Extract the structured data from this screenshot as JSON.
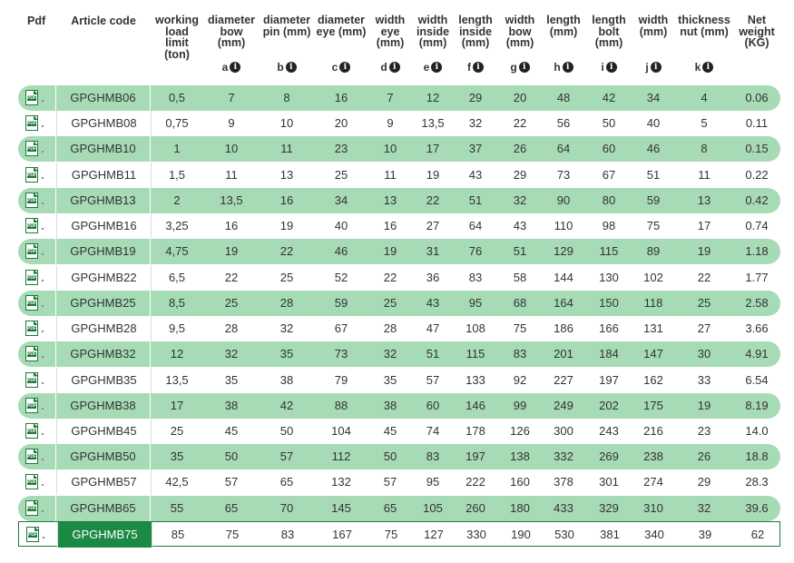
{
  "header": {
    "pdf": "Pdf",
    "article": "Article code",
    "columns": [
      {
        "lines": [
          "working",
          "load",
          "limit",
          "(ton)"
        ],
        "key": ""
      },
      {
        "lines": [
          "diameter",
          "bow",
          "(mm)"
        ],
        "key": "a"
      },
      {
        "lines": [
          "diameter",
          "pin (mm)"
        ],
        "key": "b"
      },
      {
        "lines": [
          "diameter",
          "eye (mm)"
        ],
        "key": "c"
      },
      {
        "lines": [
          "width",
          "eye",
          "(mm)"
        ],
        "key": "d"
      },
      {
        "lines": [
          "width",
          "inside",
          "(mm)"
        ],
        "key": "e"
      },
      {
        "lines": [
          "length",
          "inside",
          "(mm)"
        ],
        "key": "f"
      },
      {
        "lines": [
          "width",
          "bow",
          "(mm)"
        ],
        "key": "g"
      },
      {
        "lines": [
          "length",
          "(mm)"
        ],
        "key": "h"
      },
      {
        "lines": [
          "length",
          "bolt",
          "(mm)"
        ],
        "key": "i"
      },
      {
        "lines": [
          "width",
          "(mm)"
        ],
        "key": "j"
      },
      {
        "lines": [
          "thickness",
          "nut (mm)"
        ],
        "key": "k"
      },
      {
        "lines": [
          "Net",
          "weight",
          "(KG)"
        ],
        "key": ""
      }
    ]
  },
  "icons": {
    "pdf": "pdf-file-icon",
    "info": "info-icon"
  },
  "pdf_icon_text": "PDF",
  "info_glyph": "i",
  "accent": "#1b8a44",
  "stripe": "#a6dbb6",
  "rows": [
    {
      "code": "GPGHMB06",
      "values": [
        "0,5",
        "7",
        "8",
        "16",
        "7",
        "12",
        "29",
        "20",
        "48",
        "42",
        "34",
        "4",
        "0.06"
      ]
    },
    {
      "code": "GPGHMB08",
      "values": [
        "0,75",
        "9",
        "10",
        "20",
        "9",
        "13,5",
        "32",
        "22",
        "56",
        "50",
        "40",
        "5",
        "0.11"
      ]
    },
    {
      "code": "GPGHMB10",
      "values": [
        "1",
        "10",
        "11",
        "23",
        "10",
        "17",
        "37",
        "26",
        "64",
        "60",
        "46",
        "8",
        "0.15"
      ]
    },
    {
      "code": "GPGHMB11",
      "values": [
        "1,5",
        "11",
        "13",
        "25",
        "11",
        "19",
        "43",
        "29",
        "73",
        "67",
        "51",
        "11",
        "0.22"
      ]
    },
    {
      "code": "GPGHMB13",
      "values": [
        "2",
        "13,5",
        "16",
        "34",
        "13",
        "22",
        "51",
        "32",
        "90",
        "80",
        "59",
        "13",
        "0.42"
      ]
    },
    {
      "code": "GPGHMB16",
      "values": [
        "3,25",
        "16",
        "19",
        "40",
        "16",
        "27",
        "64",
        "43",
        "110",
        "98",
        "75",
        "17",
        "0.74"
      ]
    },
    {
      "code": "GPGHMB19",
      "values": [
        "4,75",
        "19",
        "22",
        "46",
        "19",
        "31",
        "76",
        "51",
        "129",
        "115",
        "89",
        "19",
        "1.18"
      ]
    },
    {
      "code": "GPGHMB22",
      "values": [
        "6,5",
        "22",
        "25",
        "52",
        "22",
        "36",
        "83",
        "58",
        "144",
        "130",
        "102",
        "22",
        "1.77"
      ]
    },
    {
      "code": "GPGHMB25",
      "values": [
        "8,5",
        "25",
        "28",
        "59",
        "25",
        "43",
        "95",
        "68",
        "164",
        "150",
        "118",
        "25",
        "2.58"
      ]
    },
    {
      "code": "GPGHMB28",
      "values": [
        "9,5",
        "28",
        "32",
        "67",
        "28",
        "47",
        "108",
        "75",
        "186",
        "166",
        "131",
        "27",
        "3.66"
      ]
    },
    {
      "code": "GPGHMB32",
      "values": [
        "12",
        "32",
        "35",
        "73",
        "32",
        "51",
        "115",
        "83",
        "201",
        "184",
        "147",
        "30",
        "4.91"
      ]
    },
    {
      "code": "GPGHMB35",
      "values": [
        "13,5",
        "35",
        "38",
        "79",
        "35",
        "57",
        "133",
        "92",
        "227",
        "197",
        "162",
        "33",
        "6.54"
      ]
    },
    {
      "code": "GPGHMB38",
      "values": [
        "17",
        "38",
        "42",
        "88",
        "38",
        "60",
        "146",
        "99",
        "249",
        "202",
        "175",
        "19",
        "8.19"
      ]
    },
    {
      "code": "GPGHMB45",
      "values": [
        "25",
        "45",
        "50",
        "104",
        "45",
        "74",
        "178",
        "126",
        "300",
        "243",
        "216",
        "23",
        "14.0"
      ]
    },
    {
      "code": "GPGHMB50",
      "values": [
        "35",
        "50",
        "57",
        "112",
        "50",
        "83",
        "197",
        "138",
        "332",
        "269",
        "238",
        "26",
        "18.8"
      ]
    },
    {
      "code": "GPGHMB57",
      "values": [
        "42,5",
        "57",
        "65",
        "132",
        "57",
        "95",
        "222",
        "160",
        "378",
        "301",
        "274",
        "29",
        "28.3"
      ]
    },
    {
      "code": "GPGHMB65",
      "values": [
        "55",
        "65",
        "70",
        "145",
        "65",
        "105",
        "260",
        "180",
        "433",
        "329",
        "310",
        "32",
        "39.6"
      ]
    },
    {
      "code": "GPGHMB75",
      "values": [
        "85",
        "75",
        "83",
        "167",
        "75",
        "127",
        "330",
        "190",
        "530",
        "381",
        "340",
        "39",
        "62"
      ]
    }
  ],
  "selected_row": 17
}
